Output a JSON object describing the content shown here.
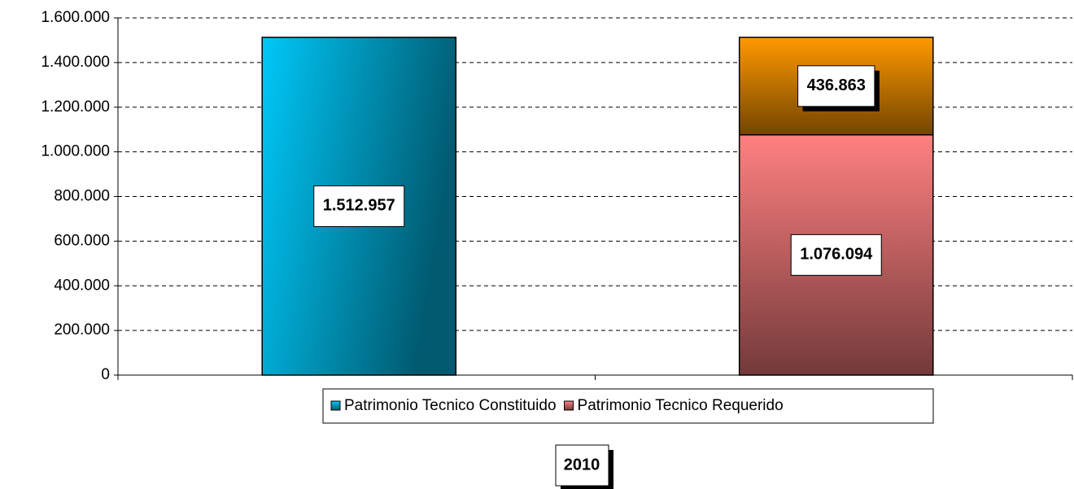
{
  "chart_data": {
    "type": "bar",
    "stacked": true,
    "x_label": "2010",
    "categories": [
      null,
      null
    ],
    "series": [
      {
        "name": "Patrimonio Tecnico Constituido",
        "color": "#00c8f8",
        "values": [
          1512957,
          null
        ],
        "value_labels": [
          "1.512.957",
          null
        ]
      },
      {
        "name": "Patrimonio Tecnico Requerido",
        "color": "#ff8080",
        "values": [
          null,
          1076094
        ],
        "value_labels": [
          null,
          "1.076.094"
        ]
      },
      {
        "color": "#ff9900",
        "values": [
          null,
          436863
        ],
        "value_labels": [
          null,
          "436.863"
        ]
      }
    ],
    "ylim": [
      0,
      1600000
    ],
    "yticks": [
      0,
      {
        "value": 200000,
        "label": "200.000"
      },
      {
        "value": 400000,
        "label": "400.000"
      },
      {
        "value": 600000,
        "label": "600.000"
      },
      {
        "value": 800000,
        "label": "800.000"
      },
      {
        "value": 1000000,
        "label": "1.000.000"
      },
      {
        "value": 1200000,
        "label": "1.200.000"
      },
      {
        "value": 1400000,
        "label": "1.400.000"
      },
      {
        "value": 1600000,
        "label": "1.600.000"
      }
    ],
    "grid": true,
    "legend": "bottom"
  }
}
